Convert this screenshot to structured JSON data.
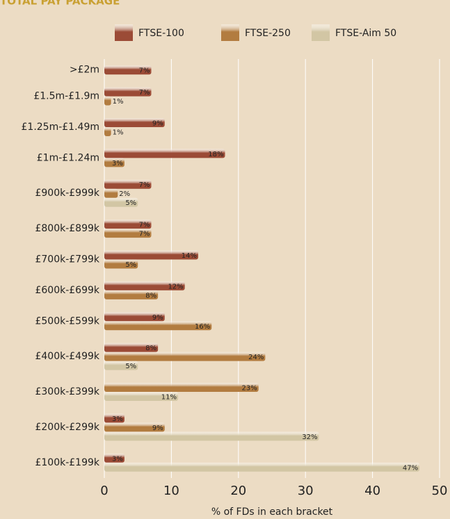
{
  "chart_data": {
    "type": "bar",
    "orientation": "horizontal",
    "title": "TOTAL PAY PACKAGE",
    "x_label": "% of FDs in each bracket",
    "categories": [
      ">£2m",
      "£1.5m-£1.9m",
      "£1.25m-£1.49m",
      "£1m-£1.24m",
      "£900k-£999k",
      "£800k-£899k",
      "£700k-£799k",
      "£600k-£699k",
      "£500k-£599k",
      "£400k-£499k",
      "£300k-£399k",
      "£200k-£299k",
      "£100k-£199k"
    ],
    "series": [
      {
        "name": "FTSE-100",
        "color": "#9b4b36",
        "values": [
          7,
          7,
          9,
          18,
          7,
          7,
          14,
          12,
          9,
          8,
          null,
          3,
          3
        ],
        "value_labels": [
          "7%",
          "7%",
          "9%",
          "18%",
          "7%",
          "7%",
          "14%",
          "12%",
          "9%",
          "8%",
          null,
          "3%",
          "3%"
        ]
      },
      {
        "name": "FTSE-250",
        "color": "#b27c40",
        "values": [
          null,
          1,
          1,
          3,
          2,
          7,
          5,
          8,
          16,
          24,
          23,
          9,
          null
        ],
        "value_labels": [
          null,
          "1%",
          "1%",
          "3%",
          "2%",
          "7%",
          "5%",
          "8%",
          "16%",
          "24%",
          "23%",
          "9%",
          null
        ]
      },
      {
        "name": "FTSE-Aim 50",
        "color": "#d2c6a4",
        "values": [
          null,
          null,
          null,
          null,
          5,
          null,
          null,
          null,
          null,
          5,
          11,
          32,
          47
        ],
        "value_labels": [
          null,
          null,
          null,
          null,
          "5%",
          null,
          null,
          null,
          null,
          "5%",
          "11%",
          "32%",
          "47%"
        ]
      }
    ],
    "xlim": [
      0,
      50
    ],
    "xticks": [
      0,
      10,
      20,
      30,
      40,
      50
    ],
    "grid": true
  }
}
